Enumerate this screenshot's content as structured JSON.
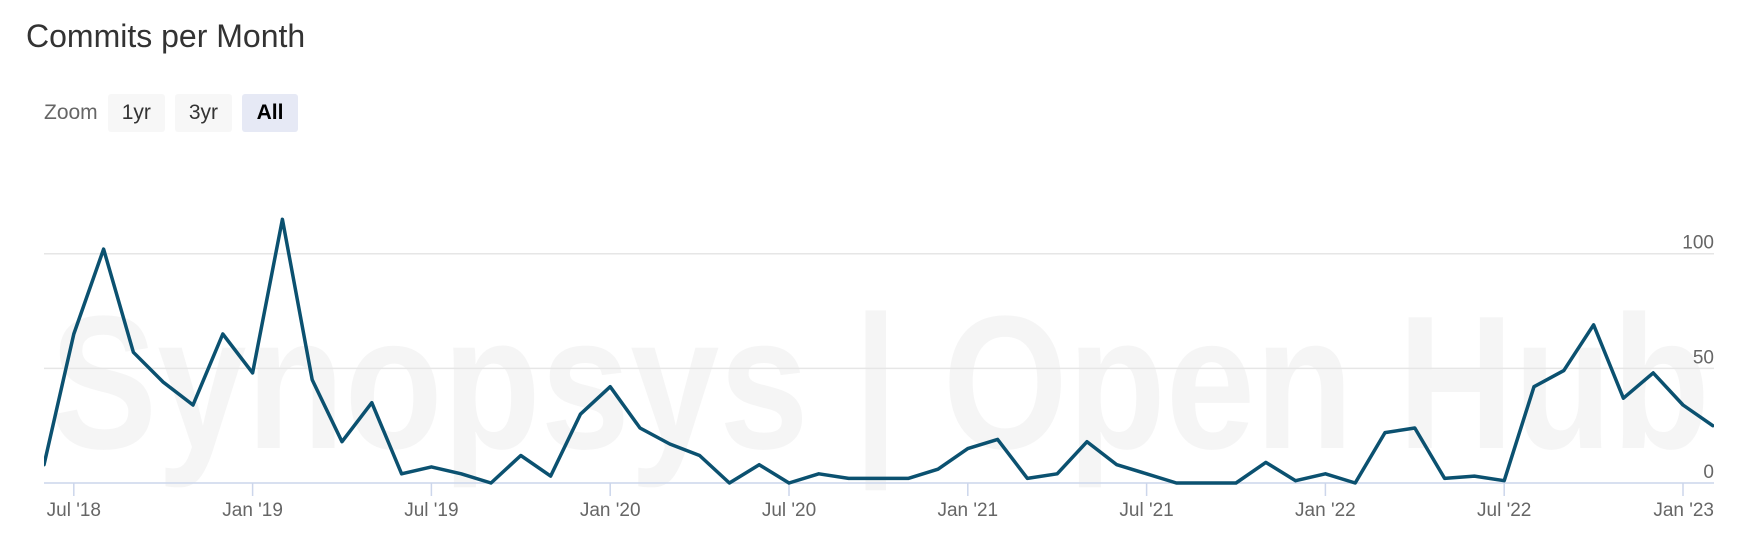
{
  "title": "Commits per Month",
  "zoom": {
    "label": "Zoom",
    "buttons": [
      "1yr",
      "3yr",
      "All"
    ],
    "selected": "All"
  },
  "watermark": "Synopsys | Open Hub",
  "colors": {
    "line": "#0b5170",
    "grid": "#e6e6e6",
    "axis": "#ccd6eb"
  },
  "chart_data": {
    "type": "line",
    "title": "Commits per Month",
    "xlabel": "",
    "ylabel": "",
    "x_start": "2018-06",
    "x_ticks": [
      "Jul '18",
      "Jan '19",
      "Jul '19",
      "Jan '20",
      "Jul '20",
      "Jan '21",
      "Jul '21",
      "Jan '22",
      "Jul '22",
      "Jan '23"
    ],
    "y_ticks": [
      0,
      50,
      100
    ],
    "ylim": [
      0,
      125
    ],
    "grid": true,
    "series": [
      {
        "values": [
          8,
          65,
          102,
          57,
          44,
          34,
          65,
          48,
          115,
          45,
          18,
          35,
          4,
          7,
          4,
          0,
          12,
          3,
          30,
          42,
          24,
          17,
          12,
          0,
          8,
          0,
          4,
          2,
          2,
          2,
          6,
          15,
          19,
          2,
          4,
          18,
          8,
          4,
          0,
          0,
          0,
          9,
          1,
          4,
          0,
          22,
          24,
          2,
          3,
          1,
          42,
          49,
          69,
          37,
          48,
          34,
          25
        ]
      }
    ]
  }
}
